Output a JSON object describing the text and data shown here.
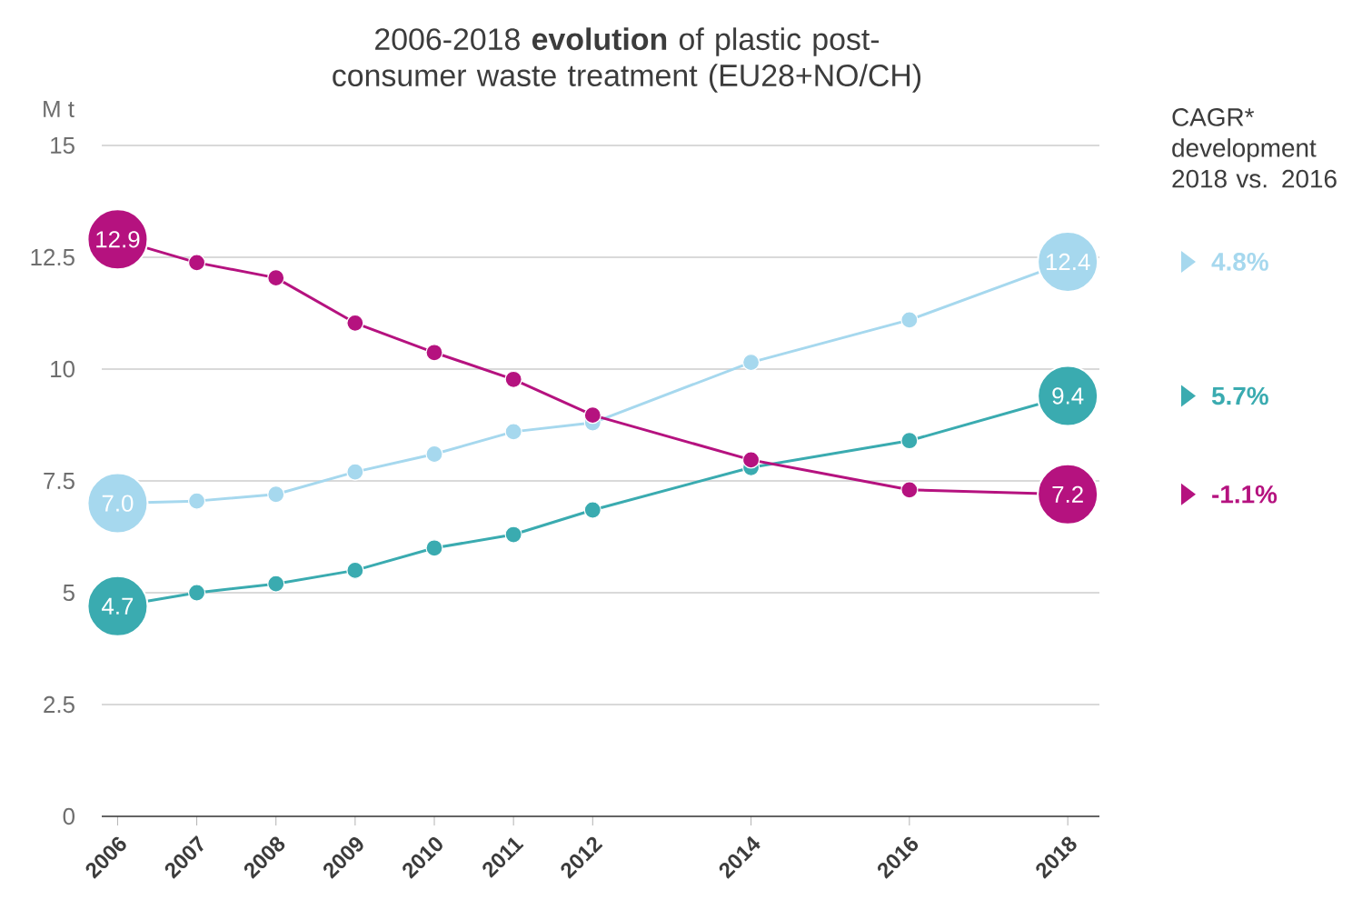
{
  "chart_data": {
    "type": "line",
    "title": "2006-2018 **evolution** of plastic post-consumer waste treatment (EU28+NO/CH)",
    "ylabel": "M t",
    "x": [
      2006,
      2007,
      2008,
      2009,
      2010,
      2011,
      2012,
      2014,
      2016,
      2018
    ],
    "series": [
      {
        "color": "#a6d8ee",
        "values": [
          7.0,
          7.05,
          7.2,
          7.7,
          8.1,
          8.6,
          8.8,
          10.15,
          11.1,
          12.4
        ],
        "value_labels": [
          "7.0",
          null,
          null,
          null,
          null,
          null,
          null,
          null,
          null,
          "12.4"
        ]
      },
      {
        "color": "#3aabb0",
        "values": [
          4.7,
          5.0,
          5.2,
          5.5,
          6.0,
          6.3,
          6.85,
          7.8,
          8.4,
          9.4
        ],
        "value_labels": [
          "4.7",
          null,
          null,
          null,
          null,
          null,
          null,
          null,
          null,
          "9.4"
        ]
      },
      {
        "color": "#b5127f",
        "values": [
          12.9,
          12.38,
          12.04,
          11.03,
          10.37,
          9.77,
          8.97,
          7.97,
          7.3,
          7.2
        ],
        "value_labels": [
          "12.9",
          null,
          null,
          null,
          null,
          null,
          null,
          null,
          null,
          "7.2"
        ]
      }
    ],
    "annotations": [
      "CAGR* development 2018 vs. 2016",
      "4.8%",
      "5.7%",
      "-1.1%"
    ],
    "xlim": [
      2005.8,
      2018.4
    ],
    "xticks": [
      2006,
      2007,
      2008,
      2009,
      2010,
      2011,
      2012,
      2014,
      2016,
      2018
    ],
    "ylim": [
      0,
      15
    ],
    "yticks": [
      0,
      2.5,
      5,
      7.5,
      10,
      12.5,
      15
    ],
    "grid": "y",
    "marker": "circle",
    "line_style": "solid"
  }
}
